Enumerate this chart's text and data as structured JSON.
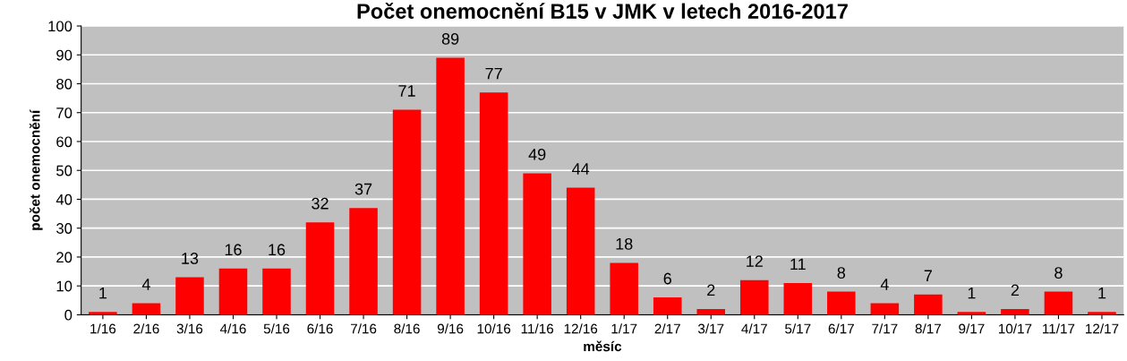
{
  "chart_data": {
    "type": "bar",
    "title": "Počet onemocnění B15 v JMK v letech 2016-2017",
    "xlabel": "měsíc",
    "ylabel": "počet onemocnění",
    "categories": [
      "1/16",
      "2/16",
      "3/16",
      "4/16",
      "5/16",
      "6/16",
      "7/16",
      "8/16",
      "9/16",
      "10/16",
      "11/16",
      "12/16",
      "1/17",
      "2/17",
      "3/17",
      "4/17",
      "5/17",
      "6/17",
      "7/17",
      "8/17",
      "9/17",
      "10/17",
      "11/17",
      "12/17"
    ],
    "values": [
      1,
      4,
      13,
      16,
      16,
      32,
      37,
      71,
      89,
      77,
      49,
      44,
      18,
      6,
      2,
      12,
      11,
      8,
      4,
      7,
      1,
      2,
      8,
      1
    ],
    "color": "#ff0000",
    "ylim": [
      0,
      100
    ],
    "yticks": [
      0,
      10,
      20,
      30,
      40,
      50,
      60,
      70,
      80,
      90,
      100
    ],
    "grid": "y",
    "data_labels": true
  }
}
